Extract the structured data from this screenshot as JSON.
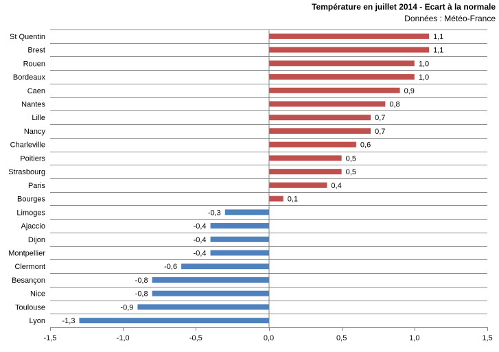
{
  "chart_data": {
    "type": "bar",
    "orientation": "horizontal",
    "title": "Température en juillet 2014 - Ecart à la normale",
    "subtitle": "Données : Météo-France",
    "categories": [
      "St Quentin",
      "Brest",
      "Rouen",
      "Bordeaux",
      "Caen",
      "Nantes",
      "Lille",
      "Nancy",
      "Charleville",
      "Poitiers",
      "Strasbourg",
      "Paris",
      "Bourges",
      "Limoges",
      "Ajaccio",
      "Dijon",
      "Montpellier",
      "Clermont",
      "Besançon",
      "Nice",
      "Toulouse",
      "Lyon"
    ],
    "values": [
      1.1,
      1.1,
      1.0,
      1.0,
      0.9,
      0.8,
      0.7,
      0.7,
      0.6,
      0.5,
      0.5,
      0.4,
      0.1,
      -0.3,
      -0.4,
      -0.4,
      -0.4,
      -0.6,
      -0.8,
      -0.8,
      -0.9,
      -1.3
    ],
    "value_labels": [
      "1,1",
      "1,1",
      "1,0",
      "1,0",
      "0,9",
      "0,8",
      "0,7",
      "0,7",
      "0,6",
      "0,5",
      "0,5",
      "0,4",
      "0,1",
      "-0,3",
      "-0,4",
      "-0,4",
      "-0,4",
      "-0,6",
      "-0,8",
      "-0,8",
      "-0,9",
      "-1,3"
    ],
    "xlim": [
      -1.5,
      1.5
    ],
    "x_ticks": [
      -1.5,
      -1.0,
      -0.5,
      0.0,
      0.5,
      1.0,
      1.5
    ],
    "x_tick_labels": [
      "-1,5",
      "-1,0",
      "-0,5",
      "0,0",
      "0,5",
      "1,0",
      "1,5"
    ],
    "grid": "horizontal",
    "colors": {
      "positive": "#c0504d",
      "negative": "#4f81bd",
      "grid": "#8c8c8c",
      "axis": "#808080"
    }
  }
}
